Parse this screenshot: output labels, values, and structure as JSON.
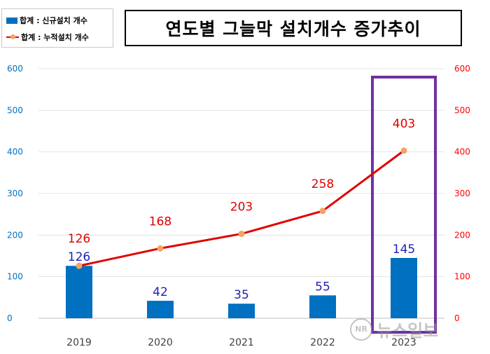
{
  "chart_data": {
    "type": "bar+line",
    "title": "연도별 그늘막 설치개수 증가추이",
    "categories": [
      "2019",
      "2020",
      "2021",
      "2022",
      "2023"
    ],
    "series": [
      {
        "name": "합계 : 신규설치 개수",
        "type": "bar",
        "axis": "left",
        "values": [
          126,
          42,
          35,
          55,
          145
        ],
        "color": "#0070c0"
      },
      {
        "name": "합계 : 누적설치 개수",
        "type": "line",
        "axis": "right",
        "values": [
          126,
          168,
          203,
          258,
          403
        ],
        "color": "#e00000",
        "marker_color": "#f4a460"
      }
    ],
    "y_left": {
      "ylim": [
        0,
        600
      ],
      "ticks": [
        0,
        100,
        200,
        300,
        400,
        500,
        600
      ],
      "color": "#0070c0"
    },
    "y_right": {
      "ylim": [
        0,
        600
      ],
      "ticks": [
        0,
        100,
        200,
        300,
        400,
        500,
        600
      ],
      "color": "#ff0000"
    },
    "grid": true,
    "legend": "top-left",
    "highlight": {
      "category": "2023",
      "color": "#7030a0"
    }
  },
  "watermark": {
    "icon": "NR",
    "text": "뉴스일보"
  }
}
